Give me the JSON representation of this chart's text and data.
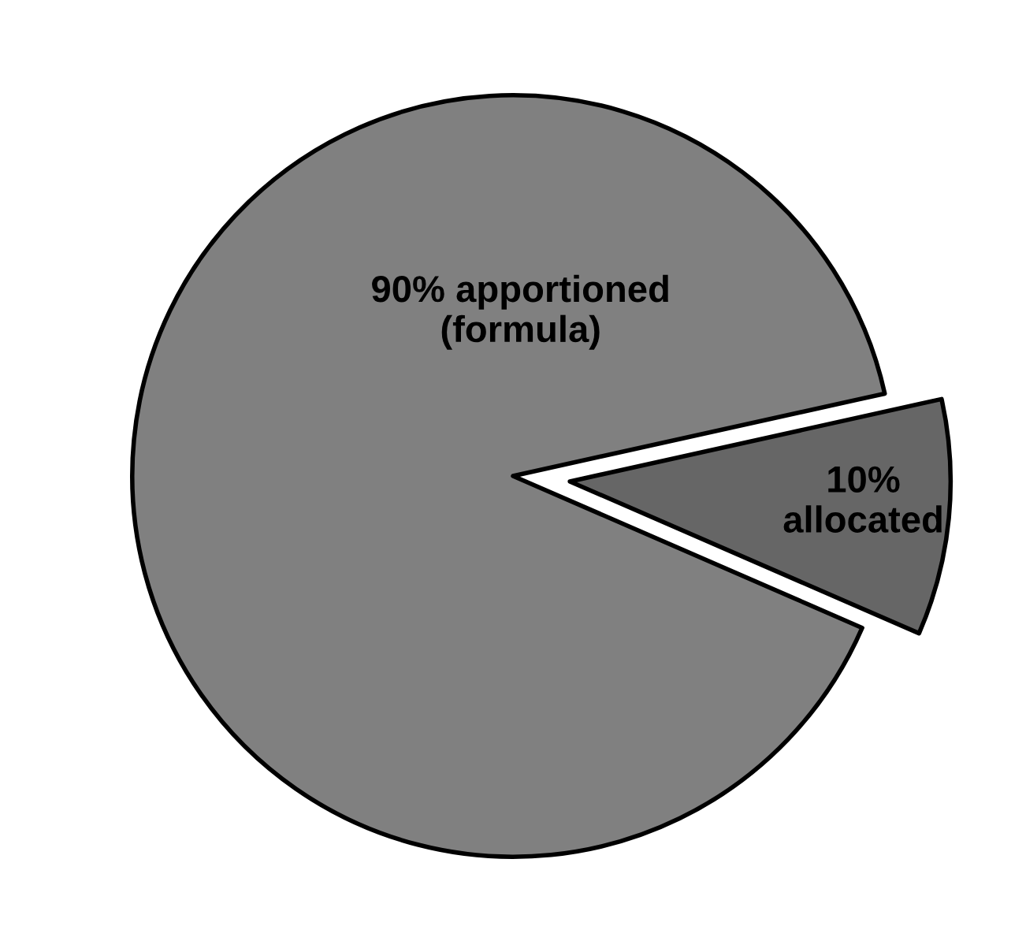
{
  "chart_data": {
    "type": "pie",
    "categories": [
      "10%\nallocated",
      "90% apportioned\n(formula)"
    ],
    "values": [
      10,
      90
    ],
    "colors": [
      "#666666",
      "#808080"
    ]
  }
}
